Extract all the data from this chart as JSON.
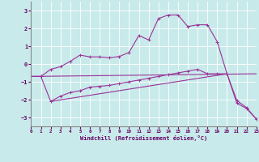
{
  "xlabel": "Windchill (Refroidissement éolien,°C)",
  "background_color": "#c8eaea",
  "line_color": "#993399",
  "grid_color": "#ffffff",
  "xlim": [
    0,
    23
  ],
  "ylim": [
    -3.5,
    3.5
  ],
  "yticks": [
    -3,
    -2,
    -1,
    0,
    1,
    2,
    3
  ],
  "xticks": [
    0,
    1,
    2,
    3,
    4,
    5,
    6,
    7,
    8,
    9,
    10,
    11,
    12,
    13,
    14,
    15,
    16,
    17,
    18,
    19,
    20,
    21,
    22,
    23
  ],
  "series1_x": [
    0,
    1,
    2,
    3,
    4,
    5,
    6,
    7,
    8,
    9,
    10,
    11,
    12,
    13,
    14,
    15,
    16,
    17,
    18,
    19,
    20,
    21,
    22,
    23
  ],
  "series1_y": [
    -0.7,
    -0.7,
    -0.3,
    -0.15,
    0.15,
    0.5,
    0.4,
    0.4,
    0.35,
    0.42,
    0.65,
    1.6,
    1.35,
    2.55,
    2.75,
    2.75,
    2.1,
    2.2,
    2.2,
    1.25,
    -0.55,
    -2.05,
    -2.45,
    -3.1
  ],
  "series2_x": [
    0,
    1,
    2,
    3,
    4,
    5,
    6,
    7,
    8,
    9,
    10,
    11,
    12,
    13,
    14,
    15,
    16,
    17,
    18,
    19,
    20,
    21,
    22,
    23
  ],
  "series2_y": [
    -0.7,
    -0.7,
    -2.1,
    -1.8,
    -1.6,
    -1.5,
    -1.3,
    -1.25,
    -1.2,
    -1.1,
    -1.0,
    -0.9,
    -0.8,
    -0.7,
    -0.6,
    -0.5,
    -0.4,
    -0.3,
    -0.55,
    -0.55,
    -0.55,
    -2.2,
    -2.5,
    -3.1
  ],
  "series3_x": [
    0,
    23
  ],
  "series3_y": [
    -0.7,
    -0.55
  ],
  "series4_x": [
    2,
    20
  ],
  "series4_y": [
    -2.1,
    -0.55
  ]
}
